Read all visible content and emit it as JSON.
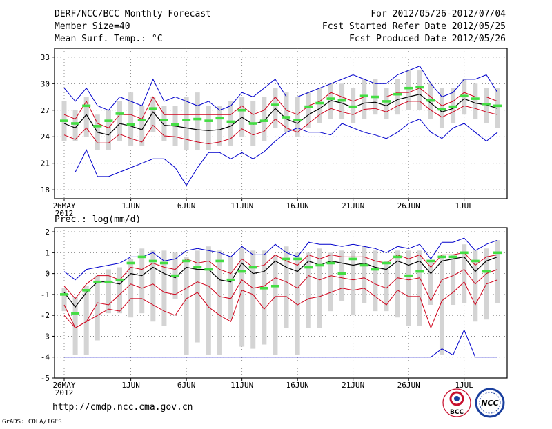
{
  "header": {
    "title": "DERF/NCC/BCC Monthly Forecast",
    "member_size": "Member Size=40",
    "variable_top": "Mean Surf. Temp.: °C",
    "period": "For 2012/05/26-2012/07/04",
    "started": "Fcst Started Refer Date 2012/05/25",
    "produced": "Fcst Produced Date 2012/05/26"
  },
  "footer": {
    "url": "http://cmdp.ncc.cma.gov.cn",
    "credit": "GrADS: COLA/IGES",
    "logo_bcc": "BCC",
    "logo_ncc": "NCC"
  },
  "colors": {
    "ensemble_mean": "#000000",
    "spread_inner": "#d0021b",
    "extremes": "#0000cc",
    "median_marker": "#44dd44",
    "box": "#d4d4d4"
  },
  "chart_data": [
    {
      "type": "line",
      "title": "Mean Surf. Temp.: °C",
      "days": 40,
      "xticks": [
        {
          "day": 0,
          "label": "26MAY",
          "sub": "2012"
        },
        {
          "day": 6,
          "label": "1JUN"
        },
        {
          "day": 11,
          "label": "6JUN"
        },
        {
          "day": 16,
          "label": "11JUN"
        },
        {
          "day": 21,
          "label": "16JUN"
        },
        {
          "day": 26,
          "label": "21JUN"
        },
        {
          "day": 31,
          "label": "26JUN"
        },
        {
          "day": 36,
          "label": "1JUL"
        }
      ],
      "ylim": [
        17,
        34
      ],
      "yticks": [
        18,
        21,
        24,
        27,
        30,
        33
      ],
      "ytick_labels": [
        "18",
        "21",
        "24",
        "27",
        "30",
        "33"
      ],
      "series": [
        {
          "name": "max",
          "values": [
            29.5,
            28,
            29.5,
            27.5,
            27,
            28.5,
            28,
            27.5,
            30.5,
            28,
            28.5,
            28,
            27.5,
            28,
            27,
            27.5,
            29,
            28.5,
            29.5,
            30.5,
            28.5,
            28.5,
            29,
            29.5,
            30,
            30.5,
            31,
            30.5,
            30,
            30,
            31,
            31.5,
            32,
            30,
            28.5,
            29,
            30.5,
            30.5,
            31,
            29
          ]
        },
        {
          "name": "upper",
          "values": [
            26.5,
            26,
            28,
            25.5,
            25,
            26.5,
            26.5,
            26,
            28.5,
            26.5,
            26.5,
            26.5,
            26.5,
            26.5,
            26.5,
            26.5,
            27.5,
            26.5,
            27,
            28.5,
            27,
            26.5,
            27.5,
            28,
            29,
            28.5,
            28,
            28.5,
            28.5,
            28.5,
            29,
            29,
            29.5,
            28.5,
            27.5,
            28,
            29,
            28.5,
            28.5,
            28
          ]
        },
        {
          "name": "mean",
          "values": [
            25.5,
            25,
            26.5,
            24.5,
            24.2,
            25.5,
            25.2,
            24.8,
            26.8,
            25.3,
            25.2,
            25,
            24.8,
            24.7,
            24.8,
            25.2,
            26.2,
            25.4,
            25.8,
            27.2,
            26,
            25.5,
            26.5,
            27.2,
            28.1,
            27.8,
            27.3,
            27.8,
            27.9,
            27.5,
            28.2,
            28.5,
            28.8,
            27.8,
            26.8,
            27.2,
            28.3,
            27.8,
            27.6,
            27.2
          ]
        },
        {
          "name": "lower",
          "values": [
            24.2,
            23.7,
            25,
            23.3,
            23.3,
            24.3,
            23.8,
            23.4,
            25.3,
            24.1,
            24,
            23.7,
            23.4,
            23.2,
            23.4,
            23.8,
            24.9,
            24.2,
            24.6,
            26,
            25,
            24.5,
            25.5,
            26.5,
            27.2,
            26.8,
            26.5,
            27.1,
            27.2,
            26.8,
            27.5,
            28,
            28,
            27,
            26.2,
            26.8,
            27.5,
            27.2,
            26.8,
            26.5
          ]
        },
        {
          "name": "min",
          "values": [
            20,
            20,
            22.5,
            19.5,
            19.5,
            20,
            20.5,
            21,
            21.5,
            21.5,
            20.5,
            18.5,
            20.5,
            22.2,
            22.2,
            21.5,
            22.2,
            21.5,
            22.3,
            23.5,
            24.5,
            25,
            24.5,
            24.5,
            24.2,
            25.5,
            25,
            24.5,
            24.2,
            23.8,
            24.5,
            25.5,
            26,
            24.5,
            23.8,
            25,
            25.5,
            24.5,
            23.5,
            24.5
          ]
        },
        {
          "name": "median",
          "values": [
            25.8,
            25.5,
            27.5,
            25.2,
            25.8,
            26.6,
            25.4,
            25.9,
            27.2,
            25.9,
            25.4,
            25.9,
            26,
            25.8,
            26.1,
            25.7,
            27,
            25.5,
            25.8,
            27.6,
            26.2,
            25.9,
            27.4,
            27.8,
            28.3,
            28.1,
            27.4,
            28.6,
            28.5,
            28,
            28.8,
            29.5,
            29.6,
            28.1,
            27.1,
            27.4,
            28.6,
            28.3,
            27.7,
            27.5
          ]
        },
        {
          "name": "box_top",
          "values": [
            28,
            27,
            28.5,
            26.5,
            27,
            28,
            29,
            27.5,
            28.5,
            27.5,
            27.5,
            28.5,
            29,
            27.5,
            27.5,
            28,
            28.5,
            28,
            28.5,
            29.5,
            29,
            28.5,
            29,
            29.5,
            30,
            30,
            29.5,
            30.5,
            30.5,
            29.5,
            30.5,
            31.5,
            31.5,
            30,
            29.5,
            29.5,
            30.5,
            30,
            29.5,
            29.5
          ]
        },
        {
          "name": "box_bottom",
          "values": [
            23.5,
            23.5,
            24,
            22.5,
            22.5,
            23.5,
            23,
            23,
            24.5,
            23.5,
            23,
            22.5,
            22.5,
            22.5,
            23,
            23,
            24,
            23,
            23.5,
            25,
            24.5,
            24,
            25,
            25.5,
            26,
            26,
            25.5,
            26,
            26.5,
            26,
            26.5,
            27,
            27,
            26,
            25,
            25.5,
            26.5,
            26,
            25.5,
            25
          ]
        }
      ]
    },
    {
      "type": "line",
      "title": "Prec.: log(mm/d)",
      "days": 40,
      "xticks": [
        {
          "day": 0,
          "label": "26MAY",
          "sub": "2012"
        },
        {
          "day": 6,
          "label": "1JUN"
        },
        {
          "day": 11,
          "label": "6JUN"
        },
        {
          "day": 16,
          "label": "11JUN"
        },
        {
          "day": 21,
          "label": "16JUN"
        },
        {
          "day": 26,
          "label": "21JUN"
        },
        {
          "day": 31,
          "label": "26JUN"
        },
        {
          "day": 36,
          "label": "1JUL"
        }
      ],
      "ylim": [
        -5,
        2.2
      ],
      "yticks": [
        -5,
        -4,
        -3,
        -2,
        -1,
        0,
        1,
        2
      ],
      "ytick_labels": [
        "-5",
        "-4",
        "-3",
        "-2",
        "-1",
        "0",
        "1",
        "2"
      ],
      "series": [
        {
          "name": "max",
          "values": [
            0.1,
            -0.3,
            0.2,
            0.3,
            0.4,
            0.5,
            0.8,
            0.8,
            1.0,
            0.6,
            0.7,
            1.1,
            1.2,
            1.1,
            1.0,
            0.8,
            1.3,
            0.9,
            0.9,
            1.4,
            1.0,
            0.8,
            1.5,
            1.4,
            1.4,
            1.3,
            1.4,
            1.3,
            1.2,
            1.0,
            1.3,
            1.2,
            1.4,
            0.7,
            1.5,
            1.5,
            1.7,
            1.1,
            1.4,
            1.6
          ]
        },
        {
          "name": "upper",
          "values": [
            -0.6,
            -1.2,
            -0.5,
            -0.1,
            -0.1,
            -0.3,
            0.3,
            0.2,
            0.5,
            0.3,
            0.2,
            0.7,
            0.5,
            0.6,
            0.2,
            0.0,
            0.7,
            0.3,
            0.4,
            0.9,
            0.6,
            0.4,
            0.9,
            0.7,
            0.9,
            0.8,
            0.8,
            0.8,
            0.6,
            0.5,
            0.9,
            0.7,
            0.9,
            0.3,
            0.9,
            0.9,
            1.0,
            0.4,
            0.8,
            0.9
          ]
        },
        {
          "name": "mean",
          "values": [
            -0.9,
            -1.6,
            -0.9,
            -0.4,
            -0.4,
            -0.5,
            0.0,
            -0.1,
            0.3,
            0.0,
            -0.2,
            0.3,
            0.2,
            0.2,
            -0.3,
            -0.4,
            0.5,
            0.0,
            0.1,
            0.6,
            0.3,
            0.1,
            0.6,
            0.4,
            0.6,
            0.5,
            0.4,
            0.5,
            0.3,
            0.2,
            0.6,
            0.4,
            0.6,
            0.0,
            0.6,
            0.7,
            0.8,
            0.1,
            0.6,
            0.8
          ]
        },
        {
          "name": "lower",
          "values": [
            -1.5,
            -2.6,
            -2.3,
            -1.4,
            -1.5,
            -1.0,
            -0.5,
            -0.7,
            -0.5,
            -0.9,
            -1.0,
            -0.7,
            -0.4,
            -0.6,
            -1.1,
            -1.2,
            -0.3,
            -0.7,
            -0.6,
            -0.2,
            -0.4,
            -0.7,
            -0.1,
            -0.3,
            -0.1,
            -0.2,
            -0.3,
            -0.2,
            -0.5,
            -0.7,
            -0.2,
            -0.3,
            -0.2,
            -1.3,
            -0.3,
            -0.1,
            0.2,
            -0.5,
            0.0,
            0.2
          ]
        },
        {
          "name": "lowest",
          "values": [
            -2.0,
            -2.6,
            -2.3,
            -2.0,
            -1.7,
            -1.8,
            -1.2,
            -1.2,
            -1.5,
            -1.8,
            -2.0,
            -1.2,
            -0.9,
            -1.6,
            -2.0,
            -2.3,
            -0.8,
            -1.0,
            -1.7,
            -1.1,
            -1.1,
            -1.5,
            -1.2,
            -1.1,
            -0.9,
            -0.7,
            -0.8,
            -0.7,
            -1.1,
            -1.5,
            -0.8,
            -1.1,
            -1.1,
            -2.6,
            -1.3,
            -0.9,
            -0.4,
            -1.5,
            -0.5,
            -0.3
          ]
        },
        {
          "name": "min",
          "values": [
            -4,
            -4,
            -4,
            -4,
            -4,
            -4,
            -4,
            -4,
            -4,
            -4,
            -4,
            -4,
            -4,
            -4,
            -4,
            -4,
            -4,
            -4,
            -4,
            -4,
            -4,
            -4,
            -4,
            -4,
            -4,
            -4,
            -4,
            -4,
            -4,
            -4,
            -4,
            -4,
            -4,
            -4,
            -3.6,
            -3.9,
            -2.7,
            -4,
            -4,
            -4
          ]
        },
        {
          "name": "median",
          "values": [
            -1.0,
            -1.9,
            -0.8,
            -0.4,
            -0.4,
            -0.3,
            0.5,
            0.8,
            0.6,
            0.5,
            -0.1,
            0.6,
            0.3,
            0.2,
            0.6,
            -0.3,
            0.1,
            0.3,
            -0.7,
            -0.6,
            0.7,
            0.7,
            0.3,
            0.4,
            0.5,
            0.0,
            0.7,
            0.4,
            0.2,
            0.5,
            0.8,
            -0.1,
            0.1,
            0.6,
            0.8,
            0.8,
            1.0,
            0.6,
            0.1,
            1.0
          ]
        },
        {
          "name": "box_top",
          "values": [
            -0.7,
            -1.1,
            -0.6,
            -0.1,
            0.2,
            0.3,
            0.7,
            1.2,
            1.1,
            1.1,
            1.0,
            0.8,
            1.1,
            1.3,
            1.1,
            0.8,
            1.2,
            1.1,
            1.1,
            0.9,
            1.3,
            1.0,
            1.0,
            1.2,
            1.0,
            1.1,
            1.1,
            1.3,
            1.1,
            0.6,
            1.1,
            1.1,
            1.1,
            0.6,
            0.9,
            0.9,
            1.4,
            1.1,
            1.2,
            1.6
          ]
        },
        {
          "name": "box_bottom",
          "values": [
            -1.8,
            -3.9,
            -3.9,
            -3.2,
            -1.9,
            -1.9,
            -2.1,
            -1.9,
            -2.3,
            -2.5,
            -1.2,
            -3.9,
            -3.3,
            -3.9,
            -3.9,
            -2.2,
            -3.5,
            -3.6,
            -3.4,
            -3.9,
            -2.6,
            -3.9,
            -2.6,
            -2.6,
            -1.8,
            -1.3,
            -2.0,
            -1.4,
            -1.8,
            -1.8,
            -2.1,
            -2.5,
            -2.5,
            -1.5,
            -3.9,
            -1.5,
            -1.4,
            -2.3,
            -2.2,
            -1.4
          ]
        }
      ]
    }
  ]
}
